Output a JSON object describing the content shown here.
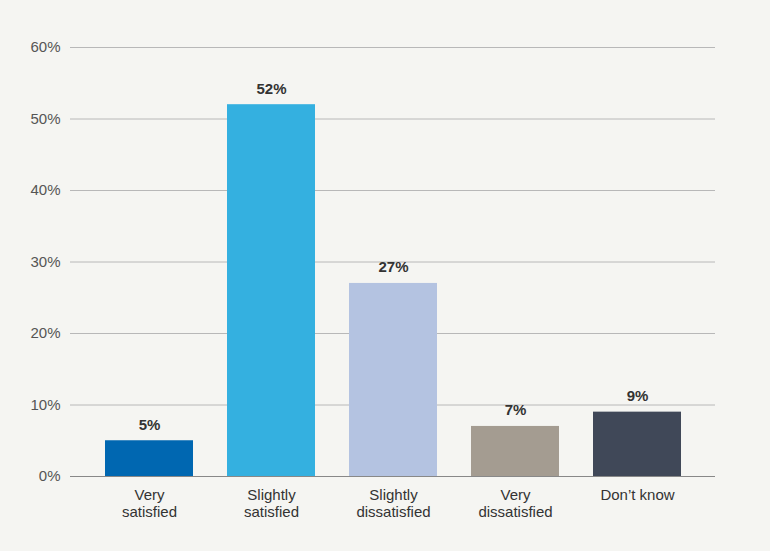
{
  "chart_data": {
    "type": "bar",
    "categories": [
      "Very\nsatisfied",
      "Slightly\nsatisfied",
      "Slightly\ndissatisfied",
      "Very\ndissatisfied",
      "Don’t know"
    ],
    "values": [
      5,
      52,
      27,
      7,
      9
    ],
    "value_labels": [
      "5%",
      "52%",
      "27%",
      "7%",
      "9%"
    ],
    "colors": [
      "#0067b1",
      "#34b0e0",
      "#b4c3e1",
      "#a49c91",
      "#404858"
    ],
    "ylim": [
      0,
      60
    ],
    "yticks": [
      {
        "value": 0,
        "label": "0%"
      },
      {
        "value": 10,
        "label": "10%"
      },
      {
        "value": 20,
        "label": "20%"
      },
      {
        "value": 30,
        "label": "30%"
      },
      {
        "value": 40,
        "label": "40%"
      },
      {
        "value": 50,
        "label": "50%"
      },
      {
        "value": 60,
        "label": "60%"
      }
    ],
    "grid": true,
    "data_labels": true
  }
}
